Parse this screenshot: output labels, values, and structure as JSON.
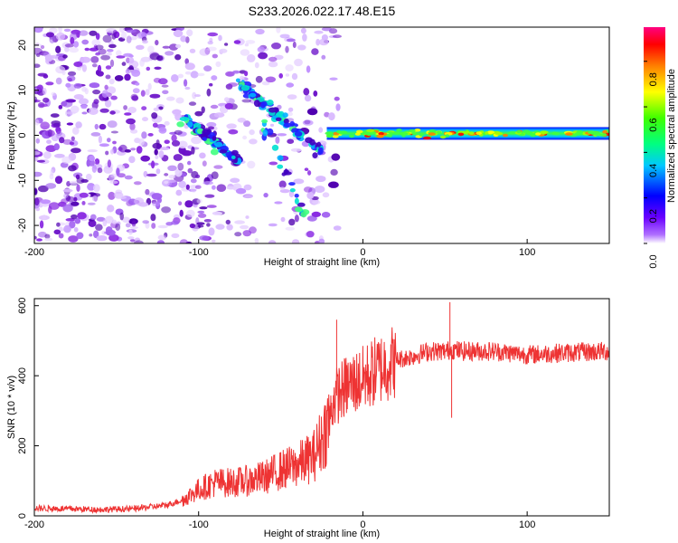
{
  "title": "S233.2026.022.17.48.E15",
  "colors": {
    "trace": "#ee3333",
    "scatter_purple": "#8a2be2",
    "frame": "#000000"
  },
  "chart_data": [
    {
      "type": "heatmap",
      "name": "spectrogram",
      "xlabel": "Height of straight line (km)",
      "ylabel": "Frequency (Hz)",
      "xlim": [
        -200,
        150
      ],
      "ylim": [
        -24,
        24
      ],
      "x_ticks": [
        -200,
        -100,
        0,
        100
      ],
      "y_ticks": [
        -20,
        -10,
        0,
        10,
        20
      ],
      "colorbar": {
        "label": "Normalized spectral amplitude",
        "range": [
          0,
          0.95
        ],
        "ticks": [
          0.0,
          0.2,
          0.4,
          0.6,
          0.8
        ],
        "tick_labels": [
          "0.0",
          "0.2",
          "0.4",
          "0.6",
          "0.8"
        ]
      },
      "features": [
        {
          "name": "scatter-noise",
          "x_range": [
            -200,
            -20
          ],
          "y_range": [
            -24,
            24
          ]
        },
        {
          "name": "upper-streak",
          "x": [
            -75,
            -25
          ],
          "y": [
            12,
            -4
          ]
        },
        {
          "name": "lower-streak",
          "x": [
            -110,
            -75
          ],
          "y": [
            4,
            -6
          ]
        },
        {
          "name": "carrier-line",
          "x_range": [
            -20,
            150
          ],
          "y_center": 0.5
        }
      ]
    },
    {
      "type": "line",
      "name": "snr",
      "xlabel": "Height of straight line (km)",
      "ylabel": "SNR (10 * v/v)",
      "xlim": [
        -200,
        150
      ],
      "ylim": [
        0,
        620
      ],
      "x_ticks": [
        -200,
        -100,
        0,
        100
      ],
      "y_ticks": [
        0,
        200,
        400,
        600
      ],
      "series": [
        {
          "name": "SNR",
          "x": [
            -200,
            -180,
            -160,
            -140,
            -120,
            -110,
            -100,
            -90,
            -80,
            -70,
            -60,
            -50,
            -40,
            -30,
            -25,
            -20,
            -18,
            -15,
            -12,
            -10,
            -5,
            0,
            10,
            20,
            30,
            40,
            50,
            55,
            60,
            80,
            100,
            120,
            150
          ],
          "values": [
            22,
            20,
            18,
            20,
            30,
            45,
            75,
            95,
            95,
            100,
            110,
            130,
            145,
            170,
            220,
            280,
            330,
            350,
            360,
            370,
            380,
            390,
            420,
            445,
            455,
            470,
            470,
            475,
            470,
            470,
            460,
            465,
            470
          ]
        }
      ],
      "annotations": [
        {
          "text": "spike",
          "x": -16,
          "y": 560
        },
        {
          "text": "spike",
          "x": 53,
          "y": 610
        },
        {
          "text": "dip",
          "x": 54,
          "y": 280
        }
      ]
    }
  ]
}
